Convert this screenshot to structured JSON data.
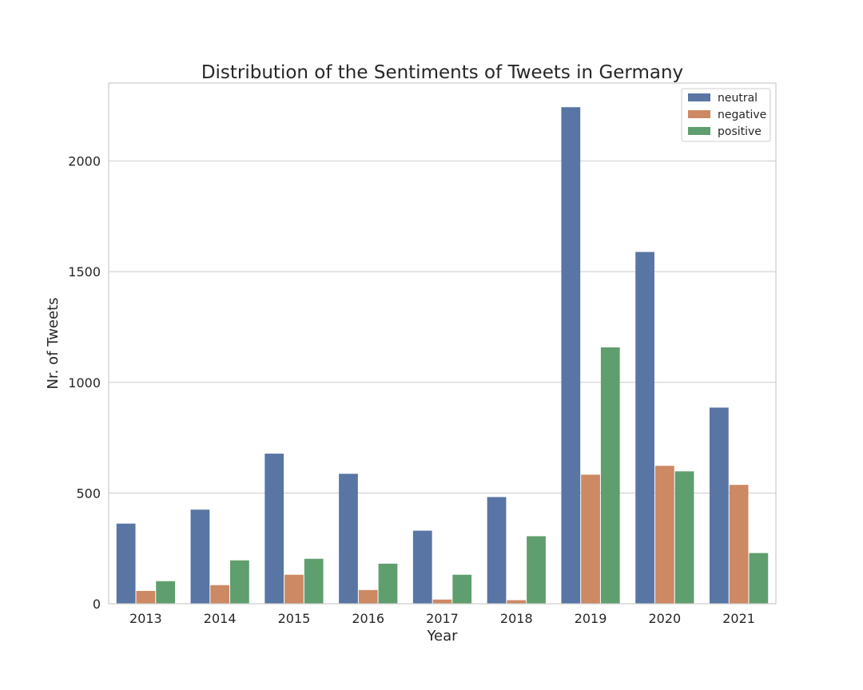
{
  "chart_data": {
    "type": "bar",
    "title": "Distribution of the Sentiments of Tweets in Germany",
    "xlabel": "Year",
    "ylabel": "Nr. of Tweets",
    "categories": [
      "2013",
      "2014",
      "2015",
      "2016",
      "2017",
      "2018",
      "2019",
      "2020",
      "2021"
    ],
    "series": [
      {
        "name": "neutral",
        "color": "#5875a4",
        "values": [
          362,
          425,
          678,
          587,
          330,
          482,
          2243,
          1589,
          886
        ]
      },
      {
        "name": "negative",
        "color": "#cc8963",
        "values": [
          58,
          84,
          131,
          62,
          19,
          16,
          583,
          623,
          537
        ]
      },
      {
        "name": "positive",
        "color": "#5f9e6e",
        "values": [
          102,
          196,
          203,
          181,
          131,
          305,
          1158,
          598,
          229
        ]
      }
    ],
    "ylim": [
      0,
      2352
    ],
    "yticks": [
      0,
      500,
      1000,
      1500,
      2000
    ],
    "grid": "y",
    "legend_position": "top-right"
  }
}
